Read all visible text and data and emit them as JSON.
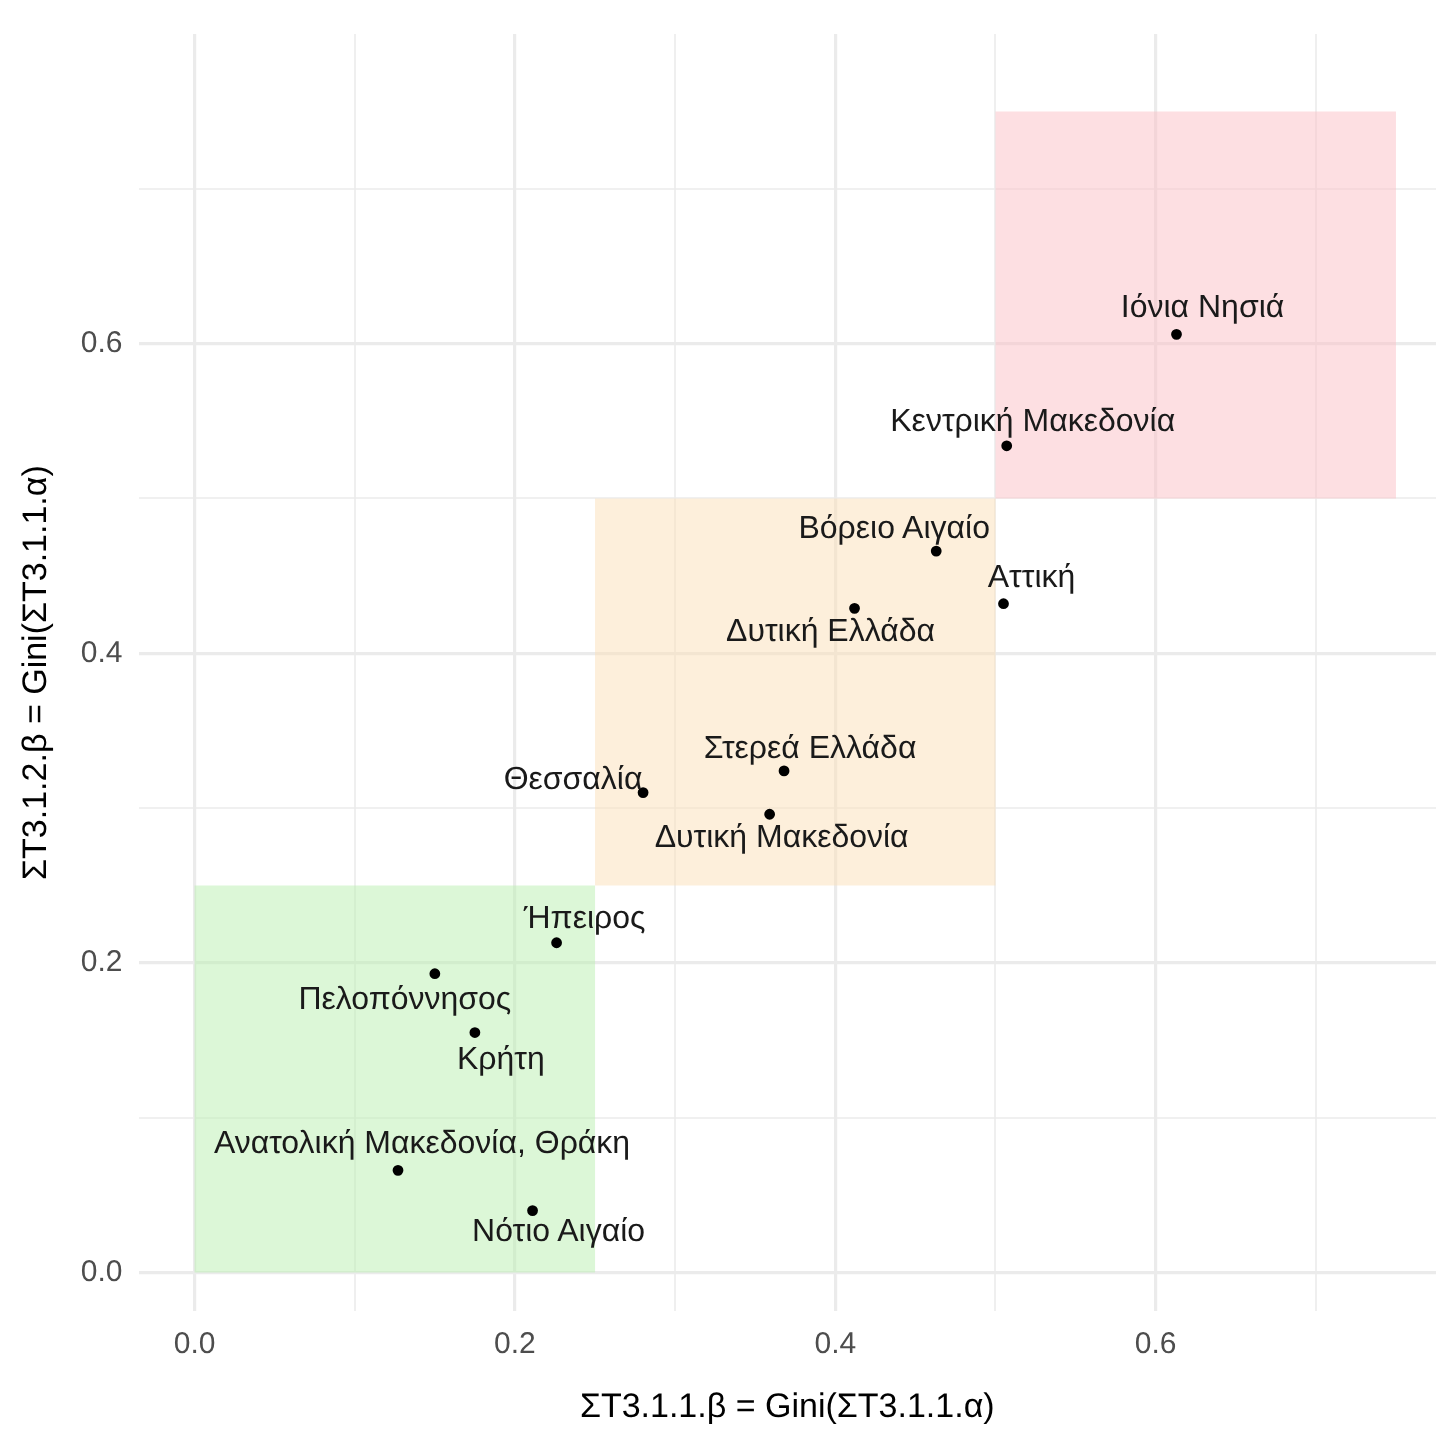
{
  "chart_data": {
    "type": "scatter",
    "xlabel": "ΣΤ3.1.1.β = Gini(ΣΤ3.1.1.α)",
    "ylabel": "ΣΤ3.1.2.β = Gini(ΣΤ3.1.1.α)",
    "x": [
      0.613,
      0.507,
      0.463,
      0.505,
      0.412,
      0.368,
      0.28,
      0.359,
      0.226,
      0.15,
      0.175,
      0.127,
      0.211
    ],
    "series": [
      {
        "color": "#000000",
        "values": [
          0.606,
          0.534,
          0.466,
          0.432,
          0.429,
          0.324,
          0.31,
          0.296,
          0.213,
          0.193,
          0.155,
          0.066,
          0.04
        ]
      }
    ],
    "annotations": [
      {
        "text": "Ιόνια Νησιά",
        "x": 0.613,
        "y": 0.606
      },
      {
        "text": "Κεντρική Μακεδονία",
        "x": 0.507,
        "y": 0.534
      },
      {
        "text": "Βόρειο Αιγαίο",
        "x": 0.463,
        "y": 0.466
      },
      {
        "text": "Αττική",
        "x": 0.505,
        "y": 0.432
      },
      {
        "text": "Δυτική Ελλάδα",
        "x": 0.412,
        "y": 0.429
      },
      {
        "text": "Στερεά Ελλάδα",
        "x": 0.368,
        "y": 0.324
      },
      {
        "text": "Θεσσαλία",
        "x": 0.28,
        "y": 0.31
      },
      {
        "text": "Δυτική Μακεδονία",
        "x": 0.359,
        "y": 0.296
      },
      {
        "text": "Ήπειρος",
        "x": 0.226,
        "y": 0.213
      },
      {
        "text": "Πελοπόννησος",
        "x": 0.15,
        "y": 0.193
      },
      {
        "text": "Κρήτη",
        "x": 0.175,
        "y": 0.155
      },
      {
        "text": "Ανατολική Μακεδονία, Θράκη",
        "x": 0.127,
        "y": 0.066
      },
      {
        "text": "Νότιο Αιγαίο",
        "x": 0.211,
        "y": 0.04
      }
    ],
    "bands": [
      {
        "axis": "x",
        "from": 0,
        "to": 0.25,
        "color": "#b9f0b0"
      },
      {
        "axis": "x",
        "from": 0.25,
        "to": 0.5,
        "color": "#fbe0b8"
      },
      {
        "axis": "x",
        "from": 0.5,
        "to": 0.75,
        "color": "#fbc0c6"
      }
    ],
    "xlim": [
      -0.035,
      0.775
    ],
    "ylim": [
      -0.025,
      0.8
    ],
    "xticks": [
      {
        "value": 0,
        "label": "0.0"
      },
      {
        "value": 0.1,
        "label": null
      },
      0.2,
      {
        "value": 0.3,
        "label": null
      },
      0.4,
      {
        "value": 0.5,
        "label": null
      },
      0.6,
      {
        "value": 0.7,
        "label": null
      }
    ],
    "yticks": [
      {
        "value": 0,
        "label": "0.0"
      },
      {
        "value": 0.1,
        "label": null
      },
      0.2,
      {
        "value": 0.3,
        "label": null
      },
      0.4,
      {
        "value": 0.5,
        "label": null
      },
      0.6,
      {
        "value": 0.7,
        "label": null
      }
    ],
    "grid": true,
    "marker": "circle",
    "legend": false
  }
}
